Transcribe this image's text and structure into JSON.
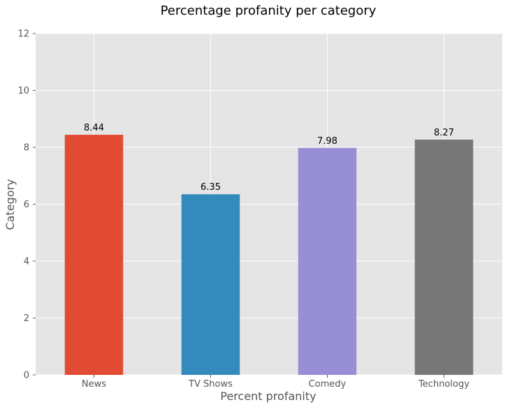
{
  "chart_data": {
    "type": "bar",
    "title": "Percentage profanity per category",
    "xlabel": "Percent profanity",
    "ylabel": "Category",
    "categories": [
      "News",
      "TV Shows",
      "Comedy",
      "Technology"
    ],
    "values": [
      8.44,
      6.35,
      7.98,
      8.27
    ],
    "data_labels": [
      "8.44",
      "6.35",
      "7.98",
      "8.27"
    ],
    "bar_colors": [
      "#E24A33",
      "#348ABD",
      "#988ED5",
      "#777777"
    ],
    "ylim": [
      0,
      12
    ],
    "yticks": [
      0,
      2,
      4,
      6,
      8,
      10,
      12
    ],
    "grid": true,
    "background": "#E5E5E5",
    "style": "ggplot"
  }
}
